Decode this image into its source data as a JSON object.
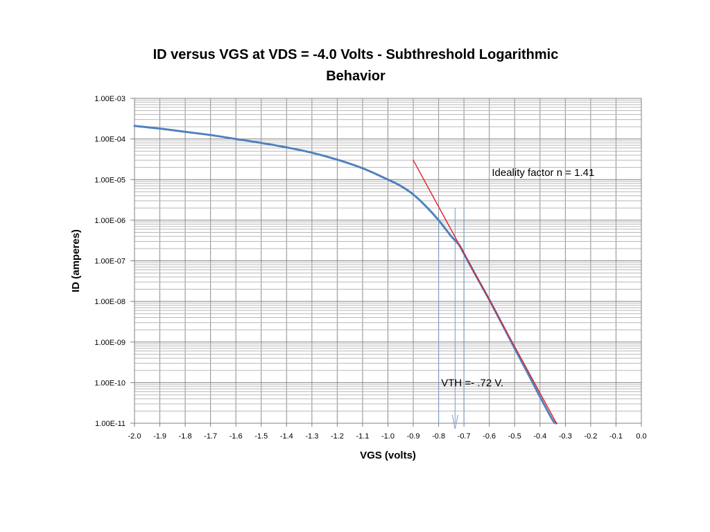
{
  "chart_data": {
    "type": "line",
    "title_line1": "ID versus VGS at VDS = -4.0 Volts - Subthreshold Logarithmic",
    "title_line2": "Behavior",
    "xlabel": "VGS (volts)",
    "ylabel": "ID (amperes)",
    "xlim": [
      -2.0,
      0.0
    ],
    "ylim": [
      1e-11,
      0.001
    ],
    "yscale": "log",
    "grid": true,
    "x_ticks": [
      "-2.0",
      "-1.9",
      "-1.8",
      "-1.7",
      "-1.6",
      "-1.5",
      "-1.4",
      "-1.3",
      "-1.2",
      "-1.1",
      "-1.0",
      "-0.9",
      "-0.8",
      "-0.7",
      "-0.6",
      "-0.5",
      "-0.4",
      "-0.3",
      "-0.2",
      "-0.1",
      "0.0"
    ],
    "y_ticks": [
      "1.00E-03",
      "1.00E-04",
      "1.00E-05",
      "1.00E-06",
      "1.00E-07",
      "1.00E-08",
      "1.00E-09",
      "1.00E-10",
      "1.00E-11"
    ],
    "series": [
      {
        "color": "#4f81bd",
        "x": [
          -2.0,
          -1.9,
          -1.8,
          -1.7,
          -1.6,
          -1.5,
          -1.4,
          -1.3,
          -1.2,
          -1.1,
          -1.0,
          -0.95,
          -0.9,
          -0.85,
          -0.8,
          -0.75,
          -0.72,
          -0.7,
          -0.65,
          -0.6,
          -0.55,
          -0.5,
          -0.45,
          -0.4,
          -0.35,
          -0.335
        ],
        "y": [
          0.00021,
          0.00018,
          0.00015,
          0.000125,
          0.0001,
          8e-05,
          6.2e-05,
          4.6e-05,
          3.1e-05,
          1.9e-05,
          1e-05,
          7e-06,
          4.3e-06,
          2.2e-06,
          1e-06,
          4e-07,
          2.5e-07,
          1.5e-07,
          4e-08,
          1.1e-08,
          2.8e-09,
          7e-10,
          1.8e-10,
          4.5e-11,
          1.2e-11,
          1e-11
        ]
      },
      {
        "color": "#e0202a",
        "x": [
          -0.9,
          -0.335
        ],
        "y": [
          3e-05,
          1e-11
        ]
      }
    ],
    "markers": [
      {
        "type": "arrow",
        "x": -0.735,
        "y_from": 2e-06,
        "y_to": 1e-11,
        "color": "#7a9cc6"
      },
      {
        "type": "vline",
        "x": -0.8,
        "y_from": 1.2e-06,
        "y_to": 1e-11,
        "color": "#7a9cc6"
      },
      {
        "type": "vline",
        "x": -0.7,
        "y_from": 2e-06,
        "y_to": 1e-11,
        "color": "#7a9cc6"
      }
    ],
    "annotations": [
      {
        "text": "Ideality factor n = 1.41",
        "x": -0.59,
        "y": 1.5e-05
      },
      {
        "text": "VTH =- .72 V.",
        "x": -0.79,
        "y": 1e-10
      }
    ]
  }
}
